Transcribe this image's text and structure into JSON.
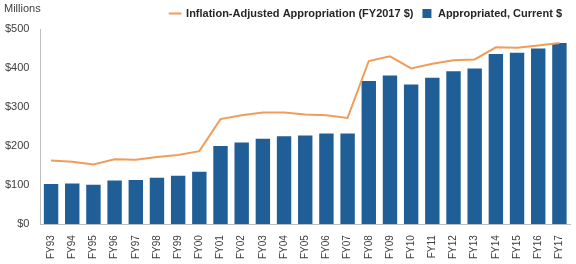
{
  "chart_data": {
    "type": "bar",
    "ylabel": "Millions",
    "categories": [
      "FY93",
      "FY94",
      "FY95",
      "FY96",
      "FY97",
      "FY98",
      "FY99",
      "FY00",
      "FY01",
      "FY02",
      "FY03",
      "FY04",
      "FY05",
      "FY06",
      "FY07",
      "FY08",
      "FY09",
      "FY10",
      "FY11",
      "FY12",
      "FY13",
      "FY14",
      "FY15",
      "FY16",
      "FY17"
    ],
    "series": [
      {
        "name": "Appropriated, Current $",
        "type": "bar",
        "color": "#1f5e96",
        "values": [
          103,
          104,
          101,
          112,
          113,
          119,
          124,
          134,
          200,
          209,
          219,
          225,
          227,
          232,
          232,
          367,
          381,
          358,
          375,
          392,
          399,
          436,
          439,
          450,
          464
        ]
      },
      {
        "name": "Inflation-Adjusted Appropriation (FY2017 $)",
        "type": "line",
        "color": "#ef9d5b",
        "values": [
          163,
          160,
          153,
          166,
          165,
          172,
          177,
          187,
          269,
          279,
          286,
          286,
          281,
          279,
          272,
          418,
          430,
          399,
          411,
          420,
          422,
          453,
          452,
          458,
          464
        ]
      }
    ],
    "ylim": [
      0,
      500
    ],
    "yticks": [
      {
        "value": 0,
        "label": "$0"
      },
      {
        "value": 100,
        "label": "$100"
      },
      {
        "value": 200,
        "label": "$200"
      },
      {
        "value": 300,
        "label": "$300"
      },
      {
        "value": 400,
        "label": "$400"
      },
      {
        "value": 500,
        "label": "$500"
      }
    ],
    "grid": false,
    "legend": "top"
  }
}
